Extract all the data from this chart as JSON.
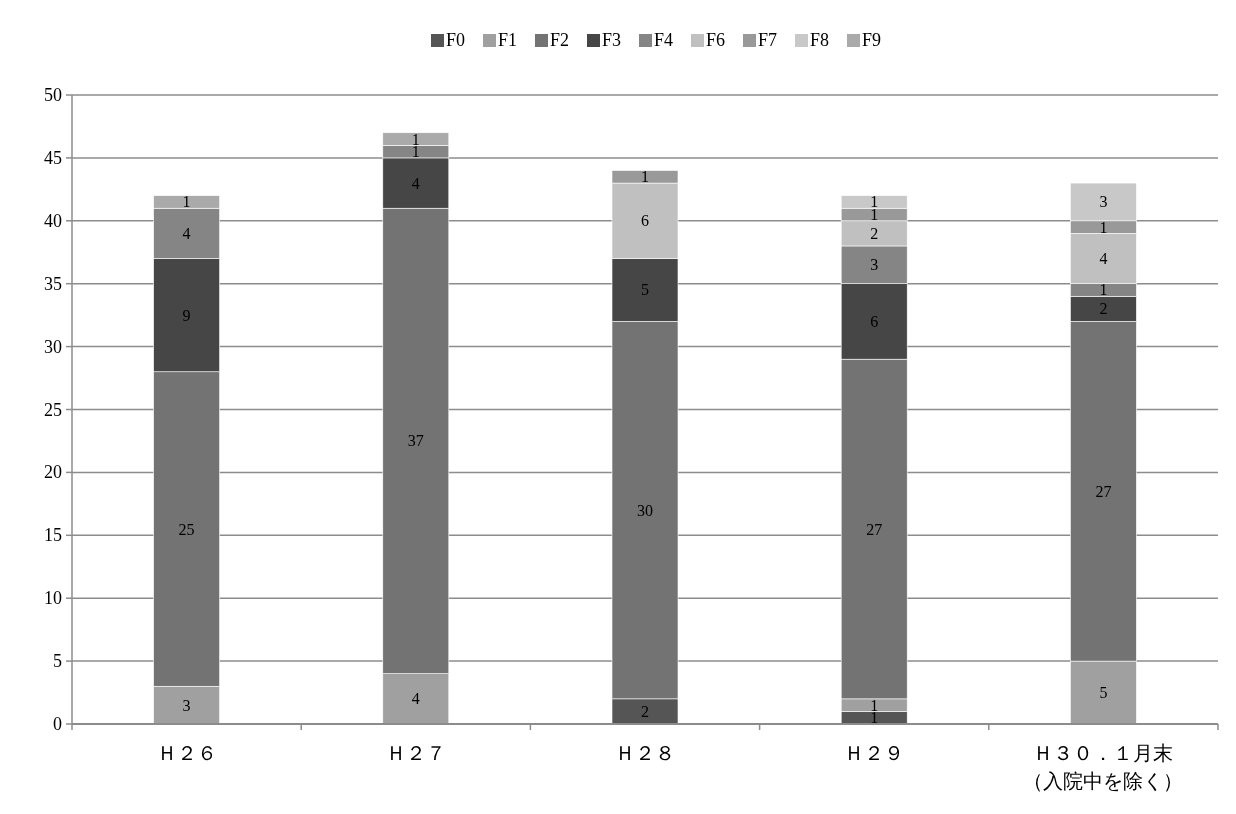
{
  "chart_data": {
    "type": "bar",
    "stacked": true,
    "categories": [
      "Ｈ２６",
      "Ｈ２７",
      "Ｈ２８",
      "Ｈ２９",
      "Ｈ３０．１月末（入院中を除く）"
    ],
    "series": [
      {
        "name": "F0",
        "color": "#555555",
        "values": [
          null,
          null,
          2,
          1,
          null
        ]
      },
      {
        "name": "F1",
        "color": "#a0a0a0",
        "values": [
          3,
          4,
          null,
          1,
          5
        ]
      },
      {
        "name": "F2",
        "color": "#737373",
        "values": [
          25,
          37,
          30,
          27,
          27
        ]
      },
      {
        "name": "F3",
        "color": "#464646",
        "values": [
          9,
          4,
          5,
          6,
          2
        ]
      },
      {
        "name": "F4",
        "color": "#858585",
        "values": [
          4,
          1,
          null,
          3,
          1
        ]
      },
      {
        "name": "F6",
        "color": "#c0c0c0",
        "values": [
          null,
          null,
          6,
          2,
          4
        ]
      },
      {
        "name": "F7",
        "color": "#999999",
        "values": [
          null,
          null,
          1,
          1,
          1
        ]
      },
      {
        "name": "F8",
        "color": "#c8c8c8",
        "values": [
          null,
          null,
          null,
          1,
          3
        ]
      },
      {
        "name": "F9",
        "color": "#aaaaaa",
        "values": [
          1,
          1,
          null,
          null,
          null
        ]
      }
    ],
    "ylim": [
      0,
      50
    ],
    "yticks": [
      0,
      5,
      10,
      15,
      20,
      25,
      30,
      35,
      40,
      45,
      50
    ],
    "grid": "y",
    "legend": "top",
    "data_labels": true
  }
}
